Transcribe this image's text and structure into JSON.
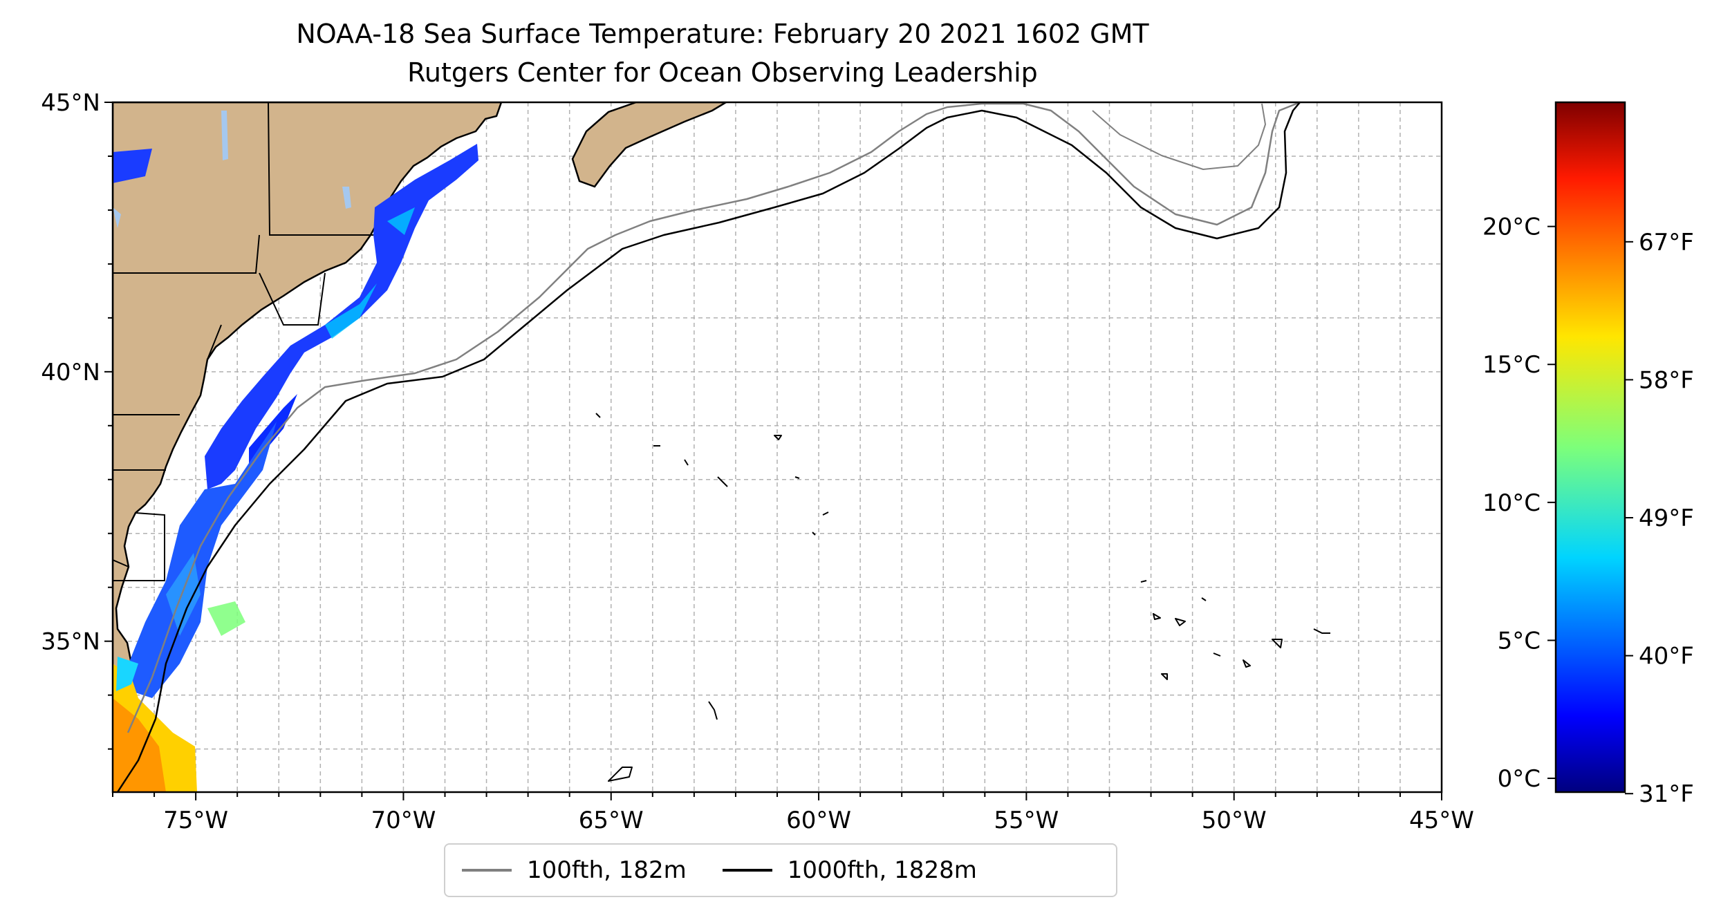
{
  "title_line1": "NOAA-18 Sea Surface Temperature: February 20 2021 1602 GMT",
  "title_line2": "Rutgers Center for Ocean Observing Leadership",
  "map": {
    "lon_min": -77,
    "lon_max": -45,
    "lat_min": 32.2,
    "lat_max": 45,
    "lon_ticks": [
      "75°W",
      "70°W",
      "65°W",
      "60°W",
      "55°W",
      "50°W",
      "45°W"
    ],
    "lat_ticks": [
      "45°N",
      "40°N",
      "35°N"
    ],
    "grid_step_degrees": 1,
    "land_color": "#d2b48c",
    "grid_color": "#b0b0b0"
  },
  "legend": {
    "items": [
      {
        "label": "100fth, 182m",
        "color": "#808080"
      },
      {
        "label": "1000fth, 1828m",
        "color": "#000000"
      }
    ]
  },
  "colorbar": {
    "colormap": "jet",
    "range_c": [
      -0.5,
      24.5
    ],
    "c_ticks": [
      "0°C",
      "5°C",
      "10°C",
      "15°C",
      "20°C"
    ],
    "f_ticks": [
      "31°F",
      "40°F",
      "49°F",
      "58°F",
      "67°F"
    ]
  }
}
